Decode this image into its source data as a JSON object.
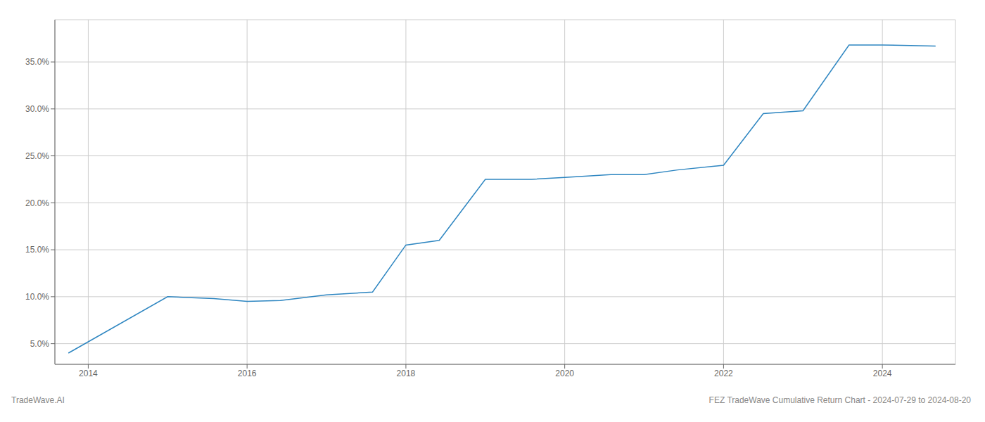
{
  "chart_data": {
    "type": "line",
    "x": [
      2013.75,
      2015.0,
      2015.58,
      2016.0,
      2016.42,
      2017.0,
      2017.58,
      2018.0,
      2018.42,
      2019.0,
      2019.58,
      2020.0,
      2020.58,
      2021.0,
      2021.42,
      2022.0,
      2022.5,
      2023.0,
      2023.58,
      2024.0,
      2024.67
    ],
    "values": [
      4.0,
      10.0,
      9.8,
      9.5,
      9.6,
      10.2,
      10.5,
      15.5,
      16.0,
      22.5,
      22.5,
      22.7,
      23.0,
      23.0,
      23.5,
      24.0,
      29.5,
      29.8,
      36.8,
      36.8,
      36.7
    ],
    "color": "#2e86c1",
    "xlim": [
      2013.58,
      2024.92
    ],
    "ylim": [
      2.8,
      39.5
    ],
    "xticks": [
      2014,
      2016,
      2018,
      2020,
      2022,
      2024
    ],
    "yticks": [
      {
        "value": 5.0,
        "label": "5.0%"
      },
      {
        "value": 10.0,
        "label": "10.0%"
      },
      {
        "value": 15.0,
        "label": "15.0%"
      },
      {
        "value": 20.0,
        "label": "20.0%"
      },
      {
        "value": 25.0,
        "label": "25.0%"
      },
      {
        "value": 30.0,
        "label": "30.0%"
      },
      {
        "value": 35.0,
        "label": "35.0%"
      }
    ],
    "grid": true,
    "annotations": [
      "TradeWave.AI",
      "FEZ TradeWave Cumulative Return Chart - 2024-07-29 to 2024-08-20"
    ]
  }
}
